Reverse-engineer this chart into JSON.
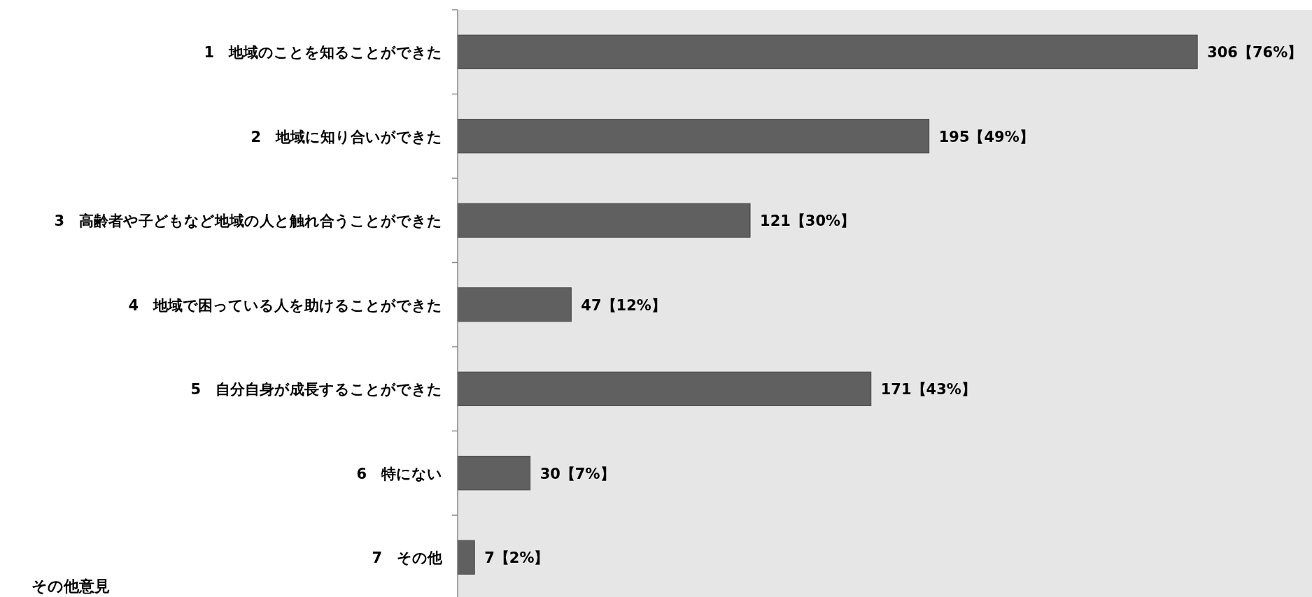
{
  "chart_data": {
    "type": "bar",
    "orientation": "horizontal",
    "categories": [
      "1　地域のことを知ることができた",
      "2　地域に知り合いができた",
      "3　高齢者や子どもなど地域の人と触れ合うことができた",
      "4　地域で困っている人を助けることができた",
      "5　自分自身が成長することができた",
      "6　特にない",
      "7　その他"
    ],
    "values": [
      306,
      195,
      121,
      47,
      171,
      30,
      7
    ],
    "value_labels": [
      "306【76%】",
      "195【49%】",
      "121【30%】",
      "47【12%】",
      "171【43%】",
      "30【7%】",
      "7【2%】"
    ],
    "color": "#606060",
    "annotations": [
      "その他意見"
    ]
  }
}
